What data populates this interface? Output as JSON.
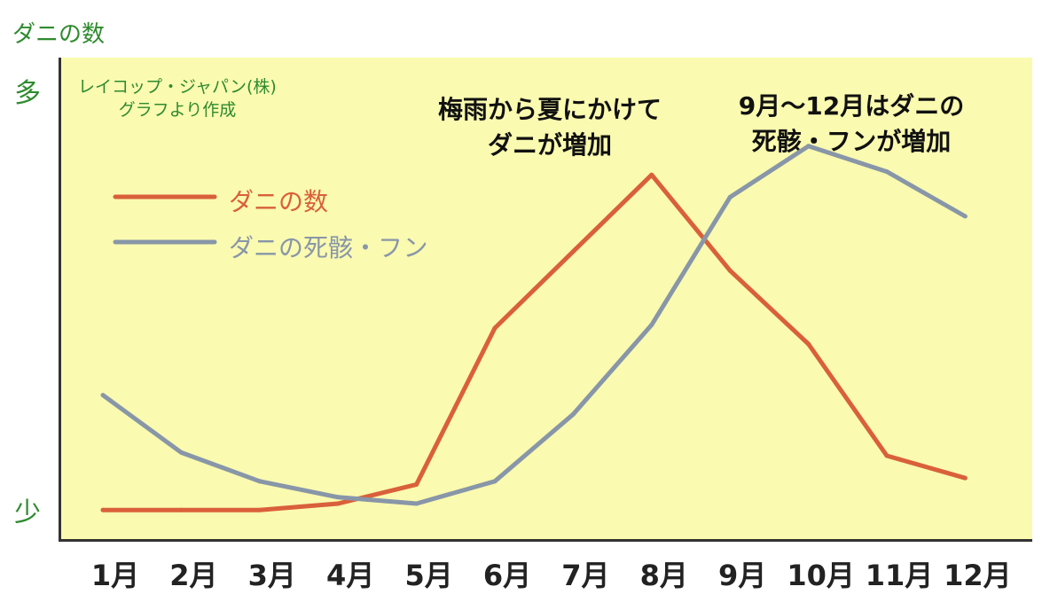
{
  "chart_data": {
    "type": "line",
    "ylabel": "ダニの数",
    "y_ticks": {
      "top": "多",
      "bottom": "少"
    },
    "ylim": [
      0,
      100
    ],
    "categories": [
      "1月",
      "2月",
      "3月",
      "4月",
      "5月",
      "6月",
      "7月",
      "8月",
      "9月",
      "10月",
      "11月",
      "12月"
    ],
    "series": [
      {
        "name": "ダニの数",
        "color": "#d9603a",
        "values": [
          3,
          3,
          3,
          5,
          11,
          60,
          84,
          108,
          78,
          55,
          20,
          13
        ]
      },
      {
        "name": "ダニの死骸・フン",
        "color": "#8896a8",
        "values": [
          39,
          21,
          12,
          7,
          5,
          12,
          33,
          61,
          101,
          117,
          109,
          95
        ]
      }
    ],
    "annotations": [
      {
        "lines": [
          "梅雨から夏にかけて",
          "ダニが増加"
        ]
      },
      {
        "lines": [
          "9月～12月はダニの",
          "死骸・フンが増加"
        ]
      }
    ],
    "source": [
      "レイコップ・ジャパン(株)",
      "グラフより作成"
    ],
    "legend_position": "top-left",
    "grid": false
  }
}
